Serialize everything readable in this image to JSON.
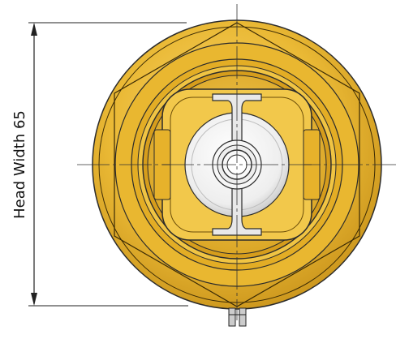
{
  "dimension": {
    "label": "Head Width 65"
  },
  "colors": {
    "brass_light": "#f4cf5a",
    "brass_mid": "#e8b62c",
    "brass_dark": "#b9860f",
    "outline": "#2b2b2b",
    "disc": "#f4f4f4",
    "hinge": "#e6e6e6"
  }
}
